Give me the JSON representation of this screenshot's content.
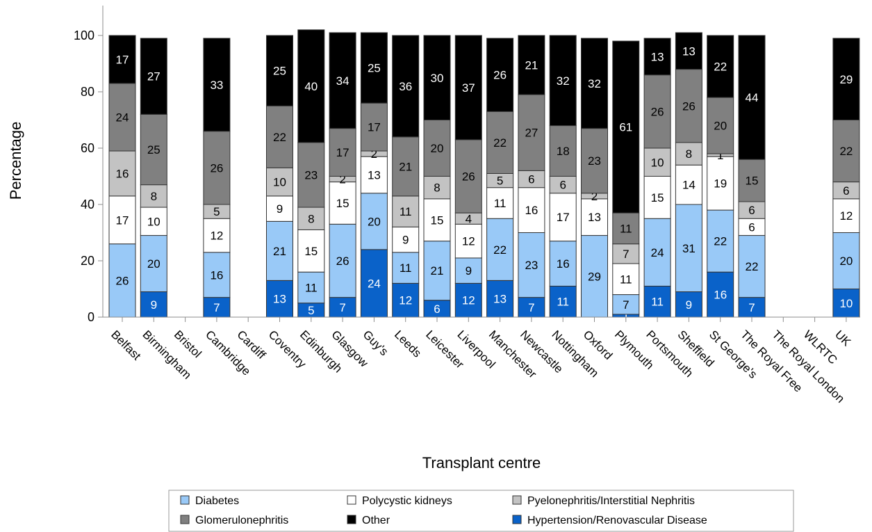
{
  "chart_data": {
    "type": "bar",
    "stacked": true,
    "xlabel": "Transplant centre",
    "ylabel": "Percentage",
    "ylim": [
      0,
      100
    ],
    "yticks": [
      0,
      20,
      40,
      60,
      80,
      100
    ],
    "categories": [
      "Belfast",
      "Birmingham",
      "Bristol",
      "Cambridge",
      "Cardiff",
      "Coventry",
      "Edinburgh",
      "Glasgow",
      "Guy's",
      "Leeds",
      "Leicester",
      "Liverpool",
      "Manchester",
      "Newcastle",
      "Nottingham",
      "Oxford",
      "Plymouth",
      "Portsmouth",
      "Sheffield",
      "St George's",
      "The Royal Free",
      "The Royal London",
      "WLRTC",
      "UK"
    ],
    "series": [
      {
        "name": "Hypertension/Renovascular Disease",
        "color": "#0a62c9",
        "label_color": "#ffffff",
        "values": [
          0,
          9,
          null,
          7,
          null,
          13,
          5,
          7,
          24,
          12,
          6,
          12,
          13,
          7,
          11,
          0,
          1,
          11,
          9,
          16,
          7,
          null,
          null,
          10
        ]
      },
      {
        "name": "Diabetes",
        "color": "#99c9f7",
        "label_color": "#000000",
        "values": [
          26,
          20,
          null,
          16,
          null,
          21,
          11,
          26,
          20,
          11,
          21,
          9,
          22,
          23,
          16,
          29,
          7,
          24,
          31,
          22,
          22,
          null,
          null,
          20
        ]
      },
      {
        "name": "Polycystic kidneys",
        "color": "#ffffff",
        "label_color": "#000000",
        "values": [
          17,
          10,
          null,
          12,
          null,
          9,
          15,
          15,
          13,
          9,
          15,
          12,
          11,
          16,
          17,
          13,
          11,
          15,
          14,
          19,
          6,
          null,
          null,
          12
        ]
      },
      {
        "name": "Pyelonephritis/Interstitial Nephritis",
        "color": "#c3c3c3",
        "label_color": "#000000",
        "values": [
          16,
          8,
          null,
          5,
          null,
          10,
          8,
          2,
          2,
          11,
          8,
          4,
          5,
          6,
          6,
          2,
          7,
          10,
          8,
          1,
          6,
          null,
          null,
          6
        ]
      },
      {
        "name": "Glomerulonephritis",
        "color": "#808080",
        "label_color": "#000000",
        "values": [
          24,
          25,
          null,
          26,
          null,
          22,
          23,
          17,
          17,
          21,
          20,
          26,
          22,
          27,
          18,
          23,
          11,
          26,
          26,
          20,
          15,
          null,
          null,
          22
        ]
      },
      {
        "name": "Other",
        "color": "#000000",
        "label_color": "#ffffff",
        "values": [
          17,
          27,
          null,
          33,
          null,
          25,
          40,
          34,
          25,
          36,
          30,
          37,
          26,
          21,
          32,
          32,
          61,
          13,
          13,
          22,
          44,
          null,
          null,
          29
        ]
      }
    ],
    "legend": {
      "placement": "bottom",
      "order": [
        "Diabetes",
        "Polycystic kidneys",
        "Pyelonephritis/Interstitial Nephritis",
        "Glomerulonephritis",
        "Other",
        "Hypertension/Renovascular Disease"
      ]
    }
  }
}
